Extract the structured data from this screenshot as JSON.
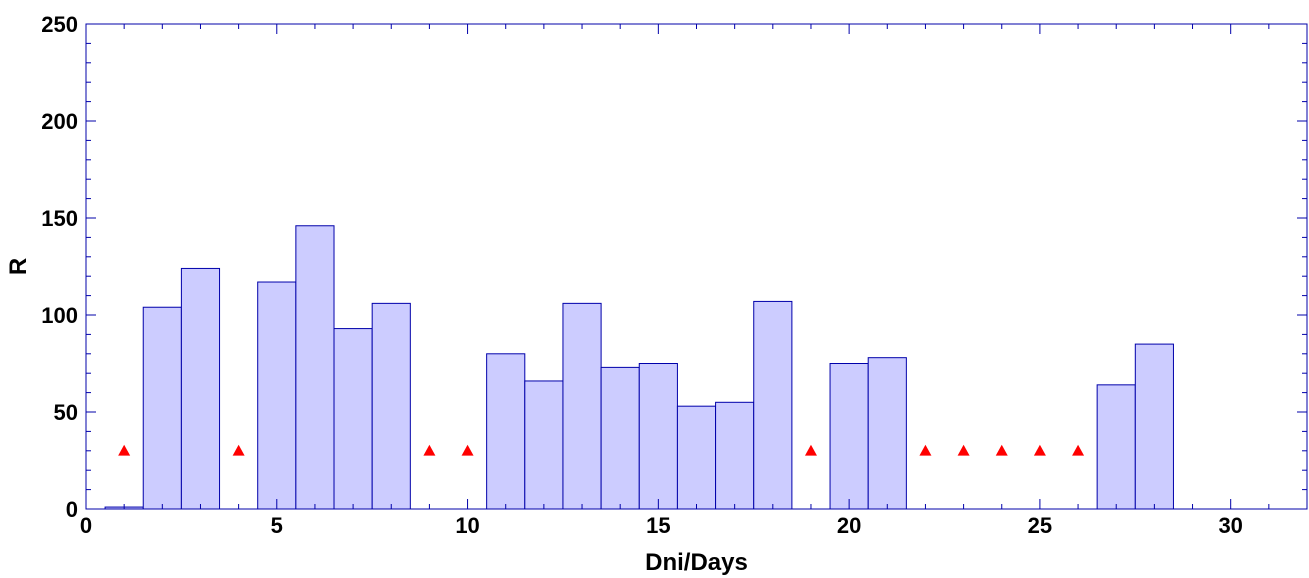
{
  "chart_data": {
    "type": "bar",
    "title": "",
    "xlabel": "Dni/Days",
    "ylabel": "R",
    "xlim": [
      0,
      32
    ],
    "ylim": [
      0,
      250
    ],
    "x_ticks": [
      0,
      5,
      10,
      15,
      20,
      25,
      30
    ],
    "y_ticks": [
      0,
      50,
      100,
      150,
      200,
      250
    ],
    "grid": false,
    "colors": {
      "bar_fill": "#ccccff",
      "bar_stroke": "#0000aa",
      "axis": "#0000aa",
      "marker": "#ff0000"
    },
    "bars": {
      "name": "",
      "width_days": 1,
      "x": [
        1,
        2,
        3,
        5,
        6,
        7,
        8,
        11,
        12,
        13,
        14,
        15,
        16,
        17,
        18,
        20,
        21,
        27,
        28
      ],
      "values": [
        1,
        104,
        124,
        117,
        146,
        93,
        106,
        80,
        66,
        106,
        73,
        75,
        53,
        55,
        107,
        75,
        78,
        64,
        85
      ]
    },
    "markers": {
      "name": "",
      "shape": "triangle",
      "x": [
        1,
        4,
        9,
        10,
        19,
        22,
        23,
        24,
        25,
        26
      ],
      "y": [
        30,
        30,
        30,
        30,
        30,
        30,
        30,
        30,
        30,
        30
      ]
    }
  }
}
